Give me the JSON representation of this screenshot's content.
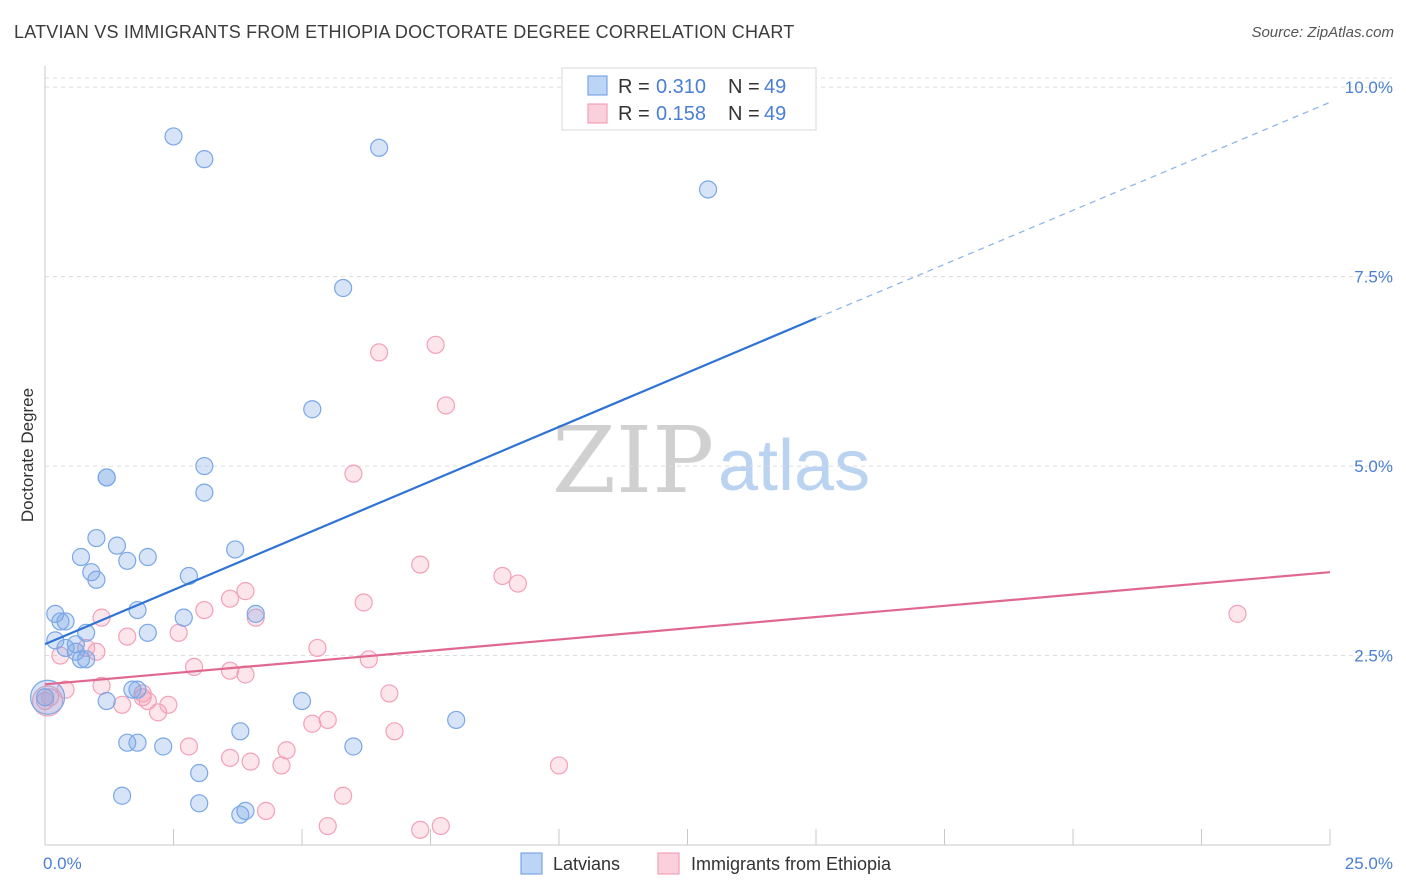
{
  "header": {
    "title": "LATVIAN VS IMMIGRANTS FROM ETHIOPIA DOCTORATE DEGREE CORRELATION CHART",
    "source": "Source: ZipAtlas.com"
  },
  "watermark": {
    "zip": "ZIP",
    "atlas": "atlas"
  },
  "legend": {
    "items": [
      {
        "r_label": "R = ",
        "r_value": "0.310",
        "n_label": "N = ",
        "n_value": "49"
      },
      {
        "r_label": "R = ",
        "r_value": "0.158",
        "n_label": "N = ",
        "n_value": "49"
      }
    ]
  },
  "chart_data": {
    "type": "scatter",
    "title": "LATVIAN VS IMMIGRANTS FROM ETHIOPIA DOCTORATE DEGREE CORRELATION CHART",
    "xlabel": "",
    "ylabel": "Doctorate Degree",
    "xlim": [
      0,
      25
    ],
    "ylim": [
      0,
      10.2
    ],
    "x_tick_labels": [
      "0.0%",
      "25.0%"
    ],
    "y_ticks": [
      2.5,
      5.0,
      7.5,
      10.0
    ],
    "y_tick_labels": [
      "2.5%",
      "5.0%",
      "7.5%",
      "10.0%"
    ],
    "grid": true,
    "legend_position": "top-center",
    "colors": {
      "latvians": "#7aa7e6",
      "ethiopia": "#f4a0b8",
      "latvians_line": "#2f73d4",
      "ethiopia_line": "#e06890"
    },
    "series": [
      {
        "name": "Latvians",
        "r": 0.31,
        "n": 49,
        "trend": {
          "x": [
            0,
            15
          ],
          "y": [
            2.65,
            6.95
          ],
          "extended_x": [
            15,
            25
          ],
          "extended_y": [
            6.95,
            9.8
          ]
        },
        "points": [
          [
            2.5,
            9.35
          ],
          [
            3.1,
            9.05
          ],
          [
            6.5,
            9.2
          ],
          [
            12.9,
            8.65
          ],
          [
            5.8,
            7.35
          ],
          [
            5.2,
            5.75
          ],
          [
            3.1,
            4.65
          ],
          [
            1.2,
            4.85
          ],
          [
            1.2,
            4.85
          ],
          [
            3.1,
            5.0
          ],
          [
            1.0,
            4.05
          ],
          [
            1.4,
            3.95
          ],
          [
            0.7,
            3.8
          ],
          [
            1.6,
            3.75
          ],
          [
            2.0,
            3.8
          ],
          [
            3.7,
            3.9
          ],
          [
            0.9,
            3.6
          ],
          [
            1.0,
            3.5
          ],
          [
            2.8,
            3.55
          ],
          [
            0.2,
            3.05
          ],
          [
            0.3,
            2.95
          ],
          [
            0.4,
            2.95
          ],
          [
            1.8,
            3.1
          ],
          [
            2.7,
            3.0
          ],
          [
            4.1,
            3.05
          ],
          [
            0.8,
            2.8
          ],
          [
            2.0,
            2.8
          ],
          [
            0.6,
            2.65
          ],
          [
            0.4,
            2.6
          ],
          [
            0.6,
            2.55
          ],
          [
            0.7,
            2.45
          ],
          [
            0.8,
            2.45
          ],
          [
            0.0,
            1.95
          ],
          [
            1.7,
            2.05
          ],
          [
            1.8,
            2.05
          ],
          [
            1.2,
            1.9
          ],
          [
            5.0,
            1.9
          ],
          [
            8.0,
            1.65
          ],
          [
            3.8,
            1.5
          ],
          [
            1.6,
            1.35
          ],
          [
            1.8,
            1.35
          ],
          [
            2.3,
            1.3
          ],
          [
            6.0,
            1.3
          ],
          [
            3.0,
            0.95
          ],
          [
            1.5,
            0.65
          ],
          [
            3.0,
            0.55
          ],
          [
            3.9,
            0.45
          ],
          [
            3.8,
            0.4
          ],
          [
            0.2,
            2.7
          ]
        ]
      },
      {
        "name": "Immigrants from Ethiopia",
        "r": 0.158,
        "n": 49,
        "trend": {
          "x": [
            0,
            25
          ],
          "y": [
            2.12,
            3.6
          ]
        },
        "points": [
          [
            7.6,
            6.6
          ],
          [
            6.5,
            6.5
          ],
          [
            7.8,
            5.8
          ],
          [
            6.0,
            4.9
          ],
          [
            7.3,
            3.7
          ],
          [
            8.9,
            3.55
          ],
          [
            9.2,
            3.45
          ],
          [
            23.2,
            3.05
          ],
          [
            3.9,
            3.35
          ],
          [
            3.6,
            3.25
          ],
          [
            6.2,
            3.2
          ],
          [
            3.1,
            3.1
          ],
          [
            1.1,
            3.0
          ],
          [
            4.1,
            3.0
          ],
          [
            2.6,
            2.8
          ],
          [
            1.6,
            2.75
          ],
          [
            5.3,
            2.6
          ],
          [
            0.8,
            2.6
          ],
          [
            1.0,
            2.55
          ],
          [
            0.3,
            2.5
          ],
          [
            6.3,
            2.45
          ],
          [
            2.9,
            2.35
          ],
          [
            3.6,
            2.3
          ],
          [
            3.9,
            2.25
          ],
          [
            1.1,
            2.1
          ],
          [
            0.4,
            2.05
          ],
          [
            6.7,
            2.0
          ],
          [
            1.9,
            1.95
          ],
          [
            2.0,
            1.9
          ],
          [
            2.4,
            1.85
          ],
          [
            1.5,
            1.85
          ],
          [
            2.2,
            1.75
          ],
          [
            5.2,
            1.6
          ],
          [
            5.5,
            1.65
          ],
          [
            6.8,
            1.5
          ],
          [
            2.8,
            1.3
          ],
          [
            4.7,
            1.25
          ],
          [
            3.6,
            1.15
          ],
          [
            4.0,
            1.1
          ],
          [
            4.6,
            1.05
          ],
          [
            10.0,
            1.05
          ],
          [
            5.8,
            0.65
          ],
          [
            4.3,
            0.45
          ],
          [
            5.5,
            0.25
          ],
          [
            7.7,
            0.25
          ],
          [
            7.3,
            0.2
          ],
          [
            0.1,
            1.95
          ],
          [
            0.0,
            1.9
          ],
          [
            1.9,
            2.0
          ]
        ]
      }
    ]
  },
  "bottom_legend": {
    "items": [
      "Latvians",
      "Immigrants from Ethiopia"
    ]
  }
}
